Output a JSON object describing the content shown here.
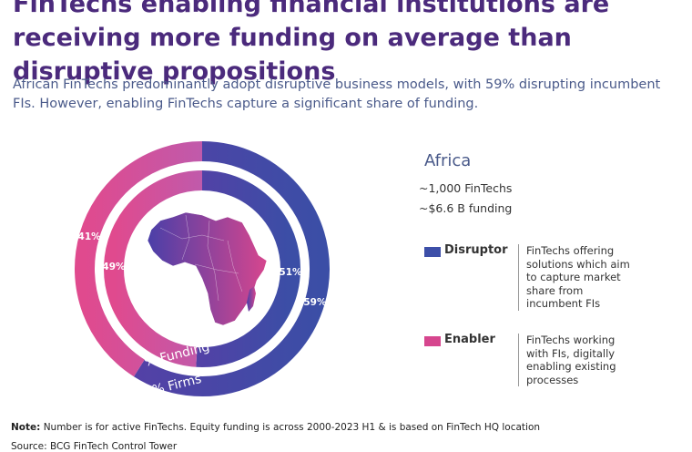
{
  "page": {
    "title": "FinTechs enabling financial institutions are receiving more funding on average than disruptive propositions",
    "subtitle": "African FinTechs predominantly adopt disruptive business models, with 59% disrupting incumbent FIs. However, enabling FinTechs capture a significant share of funding.",
    "note_label": "Note:",
    "note_text": "Number is for active FinTechs. Equity funding is across 2000-2023 H1 & is based on FinTech HQ location",
    "source_text": "Source: BCG FinTech Control Tower"
  },
  "panel": {
    "region": "Africa",
    "fintech_count": "~1,000 FinTechs",
    "funding_total": "~$6.6 B funding"
  },
  "legend": [
    {
      "label": "Disruptor",
      "color": "#3d4fa8",
      "description": "FinTechs offering solutions which aim to capture market share from incumbent FIs"
    },
    {
      "label": "Enabler",
      "color": "#d6468e",
      "description": "FinTechs working with FIs, digitally enabling existing processes"
    }
  ],
  "colors": {
    "disruptor": "#3d4fa8",
    "disruptor_dark": "#4a3a9c",
    "enabler": "#d6468e",
    "enabler_light": "#c25aa8",
    "map_start": "#4a3fa8",
    "map_end": "#d6468e"
  },
  "chart_data": {
    "type": "pie",
    "style": "concentric donut",
    "map_inset": "Africa",
    "rings": [
      {
        "name": "% Firms",
        "ring": "outer",
        "slices": [
          {
            "category": "Disruptor",
            "value": 59,
            "label": "59%"
          },
          {
            "category": "Enabler",
            "value": 41,
            "label": "41%"
          }
        ]
      },
      {
        "name": "% Funding",
        "ring": "inner",
        "slices": [
          {
            "category": "Disruptor",
            "value": 51,
            "label": "51%"
          },
          {
            "category": "Enabler",
            "value": 49,
            "label": "49%"
          }
        ]
      }
    ]
  }
}
